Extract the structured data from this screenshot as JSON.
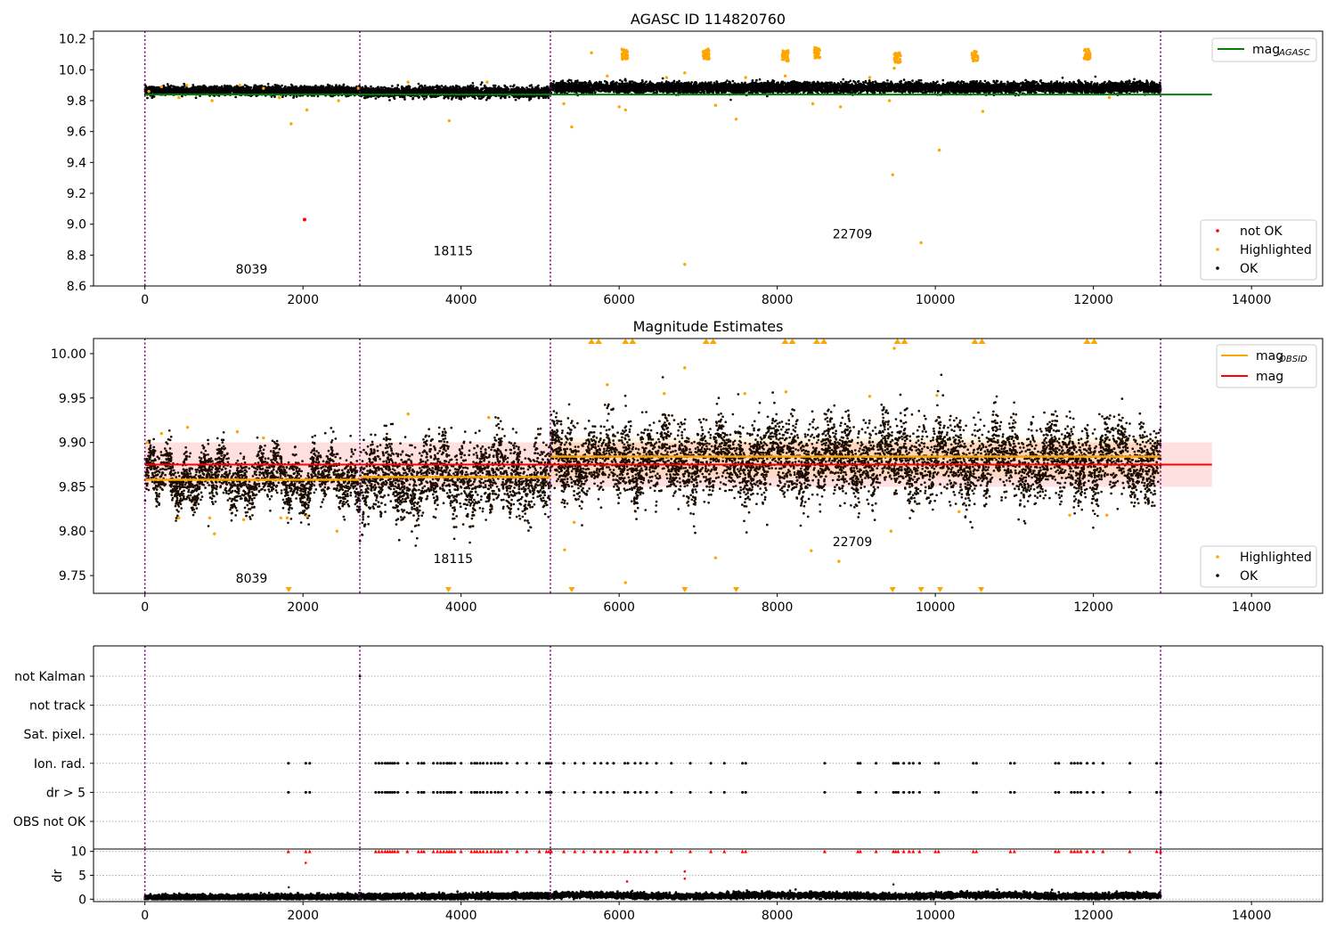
{
  "chart_data": [
    {
      "type": "scatter",
      "title": "AGASC ID 114820760",
      "xlim": [
        -650,
        14900
      ],
      "ylim": [
        8.6,
        10.25
      ],
      "xticks": [
        0,
        2000,
        4000,
        6000,
        8000,
        10000,
        12000,
        14000
      ],
      "xtick_labels": [
        "0",
        "2000",
        "4000",
        "6000",
        "8000",
        "10000",
        "12000",
        "14000"
      ],
      "yticks": [
        8.6,
        8.8,
        9.0,
        9.2,
        9.4,
        9.6,
        9.8,
        10.0,
        10.2
      ],
      "ytick_labels": [
        "8.6",
        "8.8",
        "9.0",
        "9.2",
        "9.4",
        "9.6",
        "9.8",
        "10.0",
        "10.2"
      ],
      "vlines": [
        0,
        2720,
        5130,
        12850
      ],
      "obsid_labels": [
        {
          "text": "8039",
          "x": 1350,
          "y": 8.68
        },
        {
          "text": "18115",
          "x": 3900,
          "y": 8.8
        },
        {
          "text": "22709",
          "x": 8950,
          "y": 8.91
        }
      ],
      "mag_agasc": {
        "value": 9.84,
        "x": [
          0,
          13500
        ]
      },
      "ok_band": [
        {
          "x": [
            0,
            2720
          ],
          "center": 9.865,
          "spread": 0.025
        },
        {
          "x": [
            2720,
            5130
          ],
          "center": 9.855,
          "spread": 0.03
        },
        {
          "x": [
            5130,
            12850
          ],
          "center": 9.885,
          "spread": 0.03
        }
      ],
      "highlighted_points": [
        [
          50,
          9.86
        ],
        [
          210,
          9.89
        ],
        [
          430,
          9.82
        ],
        [
          530,
          9.9
        ],
        [
          850,
          9.8
        ],
        [
          1200,
          9.9
        ],
        [
          1500,
          9.88
        ],
        [
          1700,
          9.82
        ],
        [
          1850,
          9.65
        ],
        [
          2050,
          9.74
        ],
        [
          2450,
          9.8
        ],
        [
          2700,
          9.88
        ],
        [
          3330,
          9.92
        ],
        [
          3850,
          9.67
        ],
        [
          4330,
          9.92
        ],
        [
          5300,
          9.78
        ],
        [
          5400,
          9.63
        ],
        [
          5650,
          10.11
        ],
        [
          5850,
          9.96
        ],
        [
          6000,
          9.76
        ],
        [
          6080,
          9.74
        ],
        [
          6600,
          9.95
        ],
        [
          6830,
          9.98
        ],
        [
          6830,
          8.74
        ],
        [
          7220,
          9.77
        ],
        [
          7480,
          9.68
        ],
        [
          7600,
          9.95
        ],
        [
          8100,
          9.96
        ],
        [
          8450,
          9.78
        ],
        [
          8800,
          9.76
        ],
        [
          9170,
          9.95
        ],
        [
          9420,
          9.8
        ],
        [
          9460,
          9.32
        ],
        [
          9480,
          10.01
        ],
        [
          9820,
          8.88
        ],
        [
          10050,
          9.48
        ],
        [
          10600,
          9.73
        ],
        [
          12200,
          9.82
        ]
      ],
      "highlighted_clusters": [
        {
          "x": 6070,
          "y": 10.1
        },
        {
          "x": 7100,
          "y": 10.1
        },
        {
          "x": 8100,
          "y": 10.09
        },
        {
          "x": 8500,
          "y": 10.11
        },
        {
          "x": 9520,
          "y": 10.08
        },
        {
          "x": 10500,
          "y": 10.09
        },
        {
          "x": 11920,
          "y": 10.1
        }
      ],
      "notok_points": [
        [
          2020,
          9.03
        ]
      ],
      "legend_top": {
        "label": "mag",
        "sub": "AGASC",
        "color": "#008000"
      },
      "legend_bottom": [
        {
          "label": "not OK",
          "color": "#ff0000"
        },
        {
          "label": "Highlighted",
          "color": "#ffa500"
        },
        {
          "label": "OK",
          "color": "#000000"
        }
      ]
    },
    {
      "type": "scatter",
      "title": "Magnitude Estimates",
      "xlim": [
        -650,
        14900
      ],
      "ylim": [
        9.73,
        10.017
      ],
      "xticks": [
        0,
        2000,
        4000,
        6000,
        8000,
        10000,
        12000,
        14000
      ],
      "xtick_labels": [
        "0",
        "2000",
        "4000",
        "6000",
        "8000",
        "10000",
        "12000",
        "14000"
      ],
      "yticks": [
        9.75,
        9.8,
        9.85,
        9.9,
        9.95,
        10.0
      ],
      "ytick_labels": [
        "9.75",
        "9.80",
        "9.85",
        "9.90",
        "9.95",
        "10.00"
      ],
      "vlines": [
        0,
        2720,
        5130,
        12850
      ],
      "obsid_labels": [
        {
          "text": "8039",
          "x": 1350,
          "y": 9.742
        },
        {
          "text": "18115",
          "x": 3900,
          "y": 9.764
        },
        {
          "text": "22709",
          "x": 8950,
          "y": 9.783
        }
      ],
      "mag": {
        "value": 9.875,
        "x": [
          0,
          13500
        ],
        "band": [
          9.85,
          9.9
        ]
      },
      "mag_obsid": [
        {
          "x": [
            0,
            2720
          ],
          "value": 9.858
        },
        {
          "x": [
            2720,
            5130
          ],
          "value": 9.861
        },
        {
          "x": [
            5130,
            12850
          ],
          "value": 9.884
        }
      ],
      "orange_band": {
        "x": [
          5130,
          12850
        ],
        "range": [
          9.86,
          9.905
        ]
      },
      "ok_band": [
        {
          "x": [
            0,
            2720
          ],
          "center": 9.86,
          "spread": 0.03
        },
        {
          "x": [
            2720,
            5130
          ],
          "center": 9.86,
          "spread": 0.045
        },
        {
          "x": [
            5130,
            12850
          ],
          "center": 9.88,
          "spread": 0.045
        }
      ],
      "highlighted_points": [
        [
          30,
          9.9
        ],
        [
          210,
          9.91
        ],
        [
          430,
          9.815
        ],
        [
          540,
          9.917
        ],
        [
          820,
          9.815
        ],
        [
          880,
          9.797
        ],
        [
          1170,
          9.912
        ],
        [
          1250,
          9.813
        ],
        [
          1500,
          9.905
        ],
        [
          1720,
          9.815
        ],
        [
          1800,
          9.815
        ],
        [
          2050,
          9.817
        ],
        [
          2430,
          9.8
        ],
        [
          3330,
          9.932
        ],
        [
          4350,
          9.928
        ],
        [
          5310,
          9.779
        ],
        [
          5430,
          9.81
        ],
        [
          5850,
          9.965
        ],
        [
          6080,
          9.742
        ],
        [
          6570,
          9.955
        ],
        [
          6830,
          9.984
        ],
        [
          7220,
          9.77
        ],
        [
          7590,
          9.955
        ],
        [
          8110,
          9.957
        ],
        [
          8430,
          9.778
        ],
        [
          8780,
          9.766
        ],
        [
          9170,
          9.952
        ],
        [
          9440,
          9.8
        ],
        [
          9480,
          10.006
        ],
        [
          10020,
          9.953
        ],
        [
          10300,
          9.822
        ],
        [
          11700,
          9.818
        ],
        [
          12170,
          9.818
        ]
      ],
      "triangles_top": [
        5650,
        6080,
        7100,
        8100,
        8500,
        9520,
        10500,
        11920
      ],
      "triangles_bottom": [
        1820,
        3840,
        5400,
        6830,
        7480,
        9460,
        9820,
        10060,
        10580
      ],
      "legend_top": [
        {
          "label": "mag",
          "sub": "OBSID",
          "color": "#ffa500"
        },
        {
          "label": "mag",
          "sub": "",
          "color": "#ff0000"
        }
      ],
      "legend_bottom": [
        {
          "label": "Highlighted",
          "color": "#ffa500"
        },
        {
          "label": "OK",
          "color": "#000000"
        }
      ]
    },
    {
      "type": "scatter",
      "title": "",
      "xlim": [
        -650,
        14900
      ],
      "categories": [
        "not Kalman",
        "not track",
        "Sat. pixel.",
        "Ion. rad.",
        "dr > 5",
        "OBS not OK"
      ],
      "vlines": [
        0,
        2720,
        5130,
        12850
      ],
      "flag_x": [
        1815,
        2035,
        2085,
        2920,
        2960,
        3000,
        3040,
        3070,
        3100,
        3130,
        3160,
        3200,
        3320,
        3460,
        3500,
        3530,
        3650,
        3700,
        3740,
        3780,
        3820,
        3850,
        3880,
        3920,
        4000,
        4130,
        4170,
        4200,
        4240,
        4280,
        4330,
        4380,
        4430,
        4470,
        4510,
        4580,
        4710,
        4830,
        4990,
        5080,
        5110,
        5140,
        5300,
        5440,
        5550,
        5690,
        5770,
        5850,
        5930,
        6070,
        6110,
        6200,
        6270,
        6350,
        6470,
        6660,
        6900,
        7160,
        7330,
        7560,
        7600,
        8600,
        9020,
        9050,
        9250,
        9470,
        9500,
        9530,
        9600,
        9670,
        9720,
        9800,
        10000,
        10040,
        10480,
        10520,
        10950,
        11000,
        11520,
        11560,
        11720,
        11760,
        11800,
        11840,
        11920,
        12000,
        12120,
        12460,
        12800,
        12850
      ],
      "not_kalman_x": [
        2720
      ]
    },
    {
      "type": "scatter",
      "title": "",
      "xlim": [
        -650,
        14900
      ],
      "ylim": [
        -0.5,
        10.5
      ],
      "ylabel": "dr",
      "xticks": [
        0,
        2000,
        4000,
        6000,
        8000,
        10000,
        12000,
        14000
      ],
      "xtick_labels": [
        "0",
        "2000",
        "4000",
        "6000",
        "8000",
        "10000",
        "12000",
        "14000"
      ],
      "yticks": [
        0,
        5,
        10
      ],
      "ytick_labels": [
        "0",
        "5",
        "10"
      ],
      "vlines": [
        0,
        2720,
        5130,
        12850
      ],
      "outliers": [
        [
          1820,
          2.5
        ],
        [
          2035,
          7.6
        ],
        [
          6100,
          3.7
        ],
        [
          6830,
          5.8
        ],
        [
          6830,
          4.3
        ],
        [
          9470,
          3.1
        ]
      ]
    }
  ]
}
